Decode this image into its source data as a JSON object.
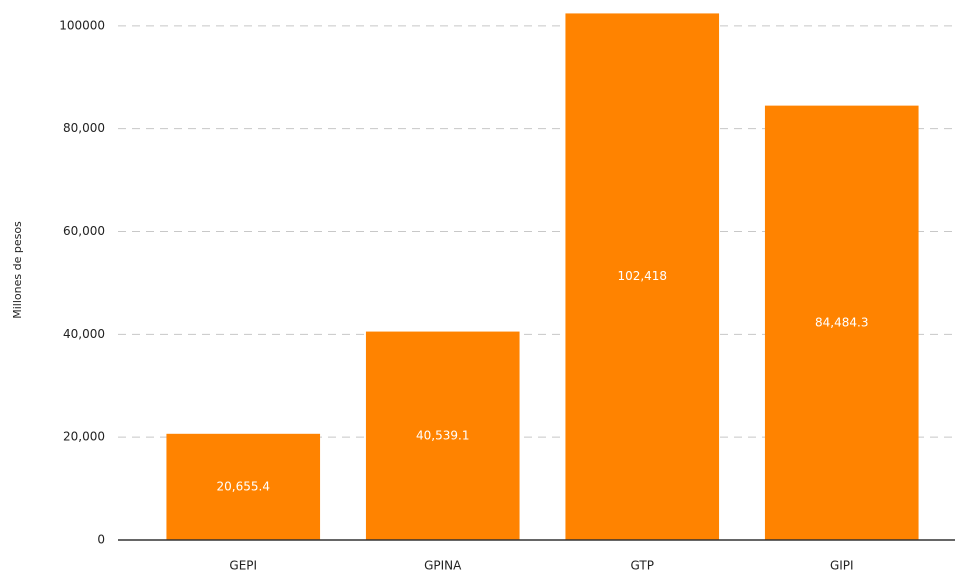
{
  "chart_data": {
    "type": "bar",
    "y_axis_label": "Millones de pesos",
    "categories": [
      "GEPI",
      "GPINA",
      "GTP",
      "GIPI"
    ],
    "values": [
      20655.4,
      40539.1,
      102418,
      84484.3
    ],
    "value_labels": [
      "20,655.4",
      "40,539.1",
      "102,418",
      "84,484.3"
    ],
    "color": "#ff8300",
    "ylim": [
      0,
      102500
    ],
    "yticks": [
      0,
      {
        "value": 20000,
        "label": "20,000"
      },
      {
        "value": 40000,
        "label": "40,000"
      },
      {
        "value": 60000,
        "label": "60,000"
      },
      {
        "value": 80000,
        "label": "80,000"
      },
      100000
    ],
    "grid": true
  }
}
